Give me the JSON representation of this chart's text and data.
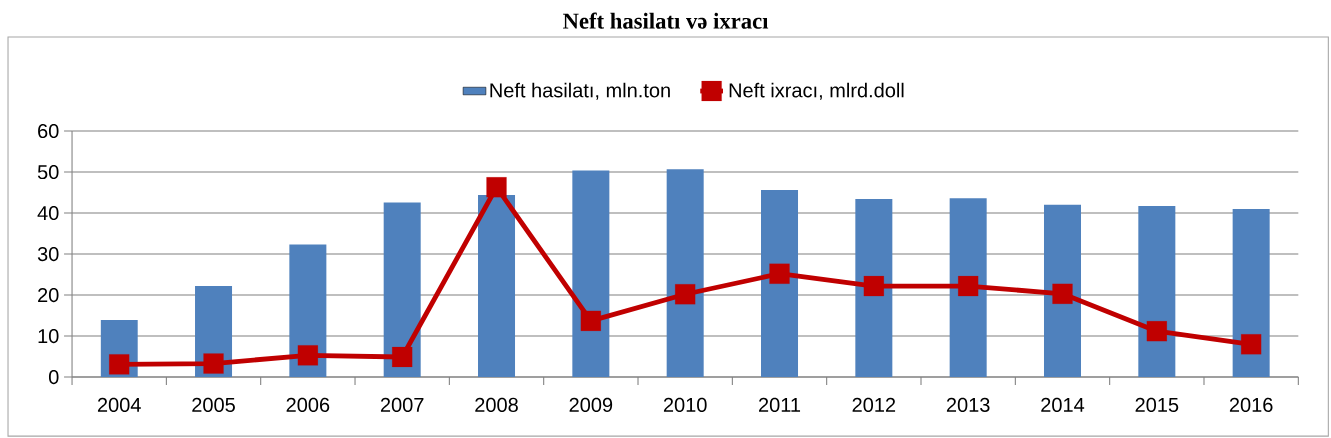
{
  "chart_data": {
    "type": "bar",
    "title": "Neft hasilatı və ixracı",
    "categories": [
      "2004",
      "2005",
      "2006",
      "2007",
      "2008",
      "2009",
      "2010",
      "2011",
      "2012",
      "2013",
      "2014",
      "2015",
      "2016"
    ],
    "series": [
      {
        "name": "Neft hasilatı, mln.ton",
        "color": "#4f81bd",
        "values": [
          13.9,
          22.2,
          32.3,
          42.6,
          44.4,
          50.4,
          50.7,
          45.6,
          43.4,
          43.6,
          42.0,
          41.7,
          41.0
        ]
      },
      {
        "name": "Neft ixracı, mlrd.doll",
        "type": "line",
        "color": "#c00000",
        "marker": "square",
        "values": [
          3.1,
          3.3,
          5.3,
          4.9,
          46.3,
          13.7,
          20.2,
          25.2,
          22.2,
          22.2,
          20.3,
          11.2,
          8.0
        ]
      }
    ],
    "ylim": [
      0,
      60
    ],
    "yticks": [
      0,
      10,
      20,
      30,
      40,
      50,
      60
    ],
    "grid": "y",
    "legend": "top"
  }
}
